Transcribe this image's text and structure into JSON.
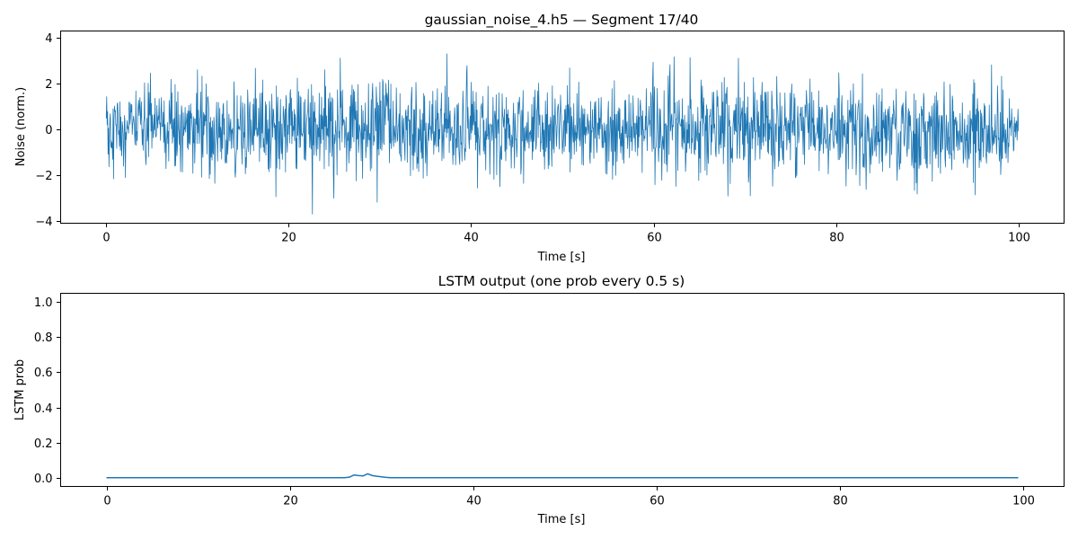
{
  "chart_data": [
    {
      "type": "line",
      "title": "gaussian_noise_4.h5 — Segment 17/40",
      "xlabel": "Time [s]",
      "ylabel": "Noise (norm.)",
      "xlim": [
        -5,
        105
      ],
      "ylim": [
        -4.1,
        4.3
      ],
      "xticks": [
        0,
        20,
        40,
        60,
        80,
        100
      ],
      "xtick_labels": [
        "0",
        "20",
        "40",
        "60",
        "80",
        "100"
      ],
      "yticks": [
        -4,
        -2,
        0,
        2,
        4
      ],
      "ytick_labels": [
        "−4",
        "−2",
        "0",
        "2",
        "4"
      ],
      "grid": false,
      "legend": "none",
      "color": "#1f77b4",
      "series": [
        {
          "x_range": [
            0,
            100
          ],
          "sample_rate_hz": 20,
          "distribution": "gaussian",
          "mean": 0,
          "std": 1,
          "max": 3.9,
          "min": -3.7
        }
      ]
    },
    {
      "type": "line",
      "title": "LSTM output (one prob every 0.5 s)",
      "xlabel": "Time [s]",
      "ylabel": "LSTM prob",
      "xlim": [
        -5,
        104.5
      ],
      "ylim": [
        -0.05,
        1.05
      ],
      "xticks": [
        0,
        20,
        40,
        60,
        80,
        100
      ],
      "xtick_labels": [
        "0",
        "20",
        "40",
        "60",
        "80",
        "100"
      ],
      "yticks": [
        0.0,
        0.2,
        0.4,
        0.6,
        0.8,
        1.0
      ],
      "ytick_labels": [
        "0.0",
        "0.2",
        "0.4",
        "0.6",
        "0.8",
        "1.0"
      ],
      "grid": false,
      "legend": "none",
      "color": "#1f77b4",
      "series": [
        {
          "x": [
            0,
            26,
            26.5,
            27,
            27.5,
            28,
            28.5,
            29,
            29.5,
            30,
            30.5,
            31,
            99.5
          ],
          "y": [
            0,
            0,
            0.003,
            0.015,
            0.012,
            0.01,
            0.022,
            0.012,
            0.008,
            0.005,
            0.002,
            0,
            0
          ]
        }
      ]
    }
  ]
}
